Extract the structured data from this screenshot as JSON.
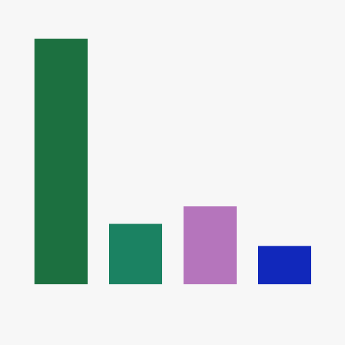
{
  "chart_data": {
    "type": "bar",
    "categories": [
      "",
      "",
      "",
      ""
    ],
    "values": [
      100,
      24.6,
      31.7,
      15.6
    ],
    "colors": [
      "#1c7040",
      "#1b8262",
      "#b575bc",
      "#1128bb"
    ],
    "ylim": [
      0,
      100
    ],
    "grid": false,
    "axes_visible": false,
    "legend": false
  },
  "colors": {
    "background": "#f7f7f7"
  }
}
